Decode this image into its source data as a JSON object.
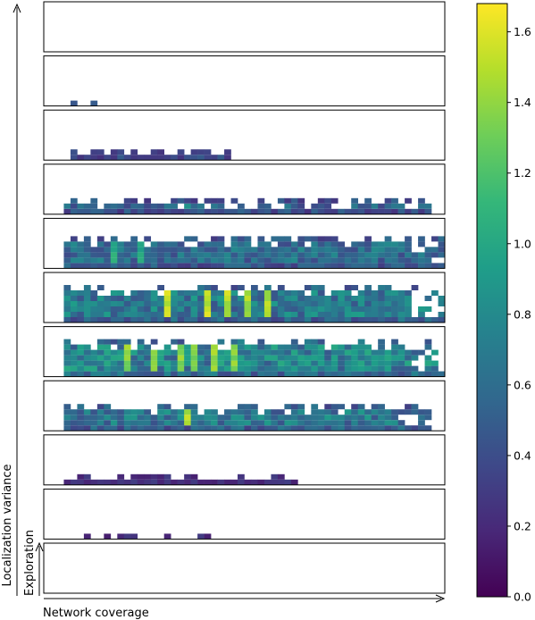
{
  "chart_data": {
    "type": "heatmap",
    "title": "",
    "xlabel": "Network coverage",
    "ylabel": "Localization variance",
    "inner_ylabel": "Exploration",
    "colormap": "viridis",
    "colorbar": {
      "range": [
        0.0,
        1.68
      ],
      "ticks": [
        0.0,
        0.2,
        0.4,
        0.6,
        0.8,
        1.0,
        1.2,
        1.4,
        1.6
      ],
      "tick_labels": [
        "0.0",
        "0.2",
        "0.4",
        "0.6",
        "0.8",
        "1.0",
        "1.2",
        "1.4",
        "1.6"
      ]
    },
    "grid_columns": 60,
    "panel_count": 11,
    "panels": [
      {
        "rows": 0,
        "start": 0,
        "end": 0,
        "mean": 0.0,
        "peak": 0.0,
        "hot": []
      },
      {
        "rows": 1,
        "start": 4,
        "end": 9,
        "mean": 0.55,
        "peak": 0.6,
        "hot": []
      },
      {
        "rows": 2,
        "start": 4,
        "end": 28,
        "mean": 0.5,
        "peak": 0.65,
        "hot": []
      },
      {
        "rows": 3,
        "start": 3,
        "end": 58,
        "mean": 0.55,
        "peak": 0.95,
        "hot": [
          21
        ]
      },
      {
        "rows": 6,
        "start": 3,
        "end": 60,
        "mean": 0.62,
        "peak": 1.1,
        "hot": [
          10,
          14
        ]
      },
      {
        "rows": 7,
        "start": 3,
        "end": 60,
        "mean": 0.72,
        "peak": 1.62,
        "hot": [
          18,
          24,
          27,
          30,
          33
        ]
      },
      {
        "rows": 7,
        "start": 3,
        "end": 60,
        "mean": 0.78,
        "peak": 1.5,
        "hot": [
          12,
          16,
          20,
          22,
          25,
          28
        ]
      },
      {
        "rows": 5,
        "start": 3,
        "end": 58,
        "mean": 0.7,
        "peak": 1.6,
        "hot": [
          21
        ]
      },
      {
        "rows": 2,
        "start": 3,
        "end": 38,
        "mean": 0.32,
        "peak": 0.45,
        "hot": []
      },
      {
        "rows": 1,
        "start": 4,
        "end": 28,
        "mean": 0.3,
        "peak": 0.4,
        "hot": []
      },
      {
        "rows": 0,
        "start": 0,
        "end": 0,
        "mean": 0.0,
        "peak": 0.0,
        "hot": []
      }
    ]
  }
}
